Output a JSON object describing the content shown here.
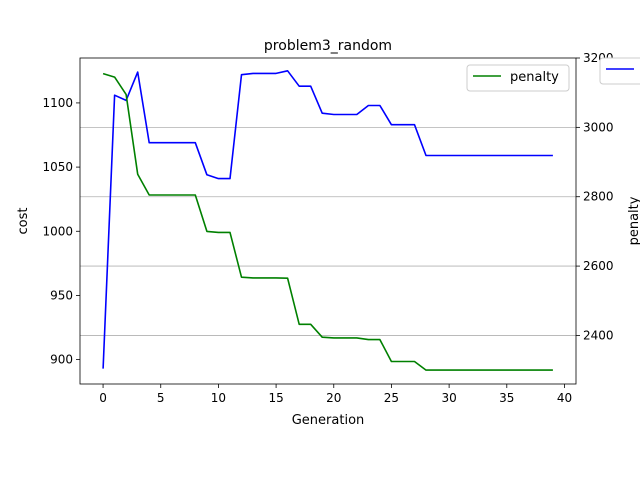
{
  "chart_data": {
    "type": "line",
    "title": "problem3_random",
    "xlabel": "Generation",
    "ylabel_left": "cost",
    "ylabel_right": "penalty",
    "xlim": [
      -2,
      41
    ],
    "ylim_left": [
      881,
      1135
    ],
    "ylim_right": [
      2260,
      3200
    ],
    "x_ticks": [
      0,
      5,
      10,
      15,
      20,
      25,
      30,
      35,
      40
    ],
    "y_ticks_left": [
      900,
      950,
      1000,
      1050,
      1100
    ],
    "y_ticks_right": [
      2400,
      2600,
      2800,
      3000,
      3200
    ],
    "grid": "horizontal, right axis",
    "legend": [
      {
        "label": "penalty",
        "color": "#008000",
        "placement": "top-right"
      }
    ],
    "series": [
      {
        "name": "cost",
        "axis": "left",
        "color": "#0000ff",
        "x": [
          0,
          1,
          2,
          3,
          4,
          5,
          6,
          7,
          8,
          9,
          10,
          11,
          12,
          13,
          14,
          15,
          16,
          17,
          18,
          19,
          20,
          21,
          22,
          23,
          24,
          25,
          26,
          27,
          28,
          29,
          30,
          31,
          32,
          33,
          34,
          35,
          36,
          37,
          38,
          39
        ],
        "values": [
          893,
          1106,
          1102,
          1124,
          1069,
          1069,
          1069,
          1069,
          1069,
          1044,
          1041,
          1041,
          1122,
          1123,
          1123,
          1123,
          1125,
          1113,
          1113,
          1092,
          1091,
          1091,
          1091,
          1098,
          1098,
          1083,
          1083,
          1083,
          1059,
          1059,
          1059,
          1059,
          1059,
          1059,
          1059,
          1059,
          1059,
          1059,
          1059,
          1059
        ]
      },
      {
        "name": "penalty",
        "axis": "right",
        "color": "#008000",
        "x": [
          0,
          1,
          2,
          3,
          4,
          5,
          6,
          7,
          8,
          9,
          10,
          11,
          12,
          13,
          14,
          15,
          16,
          17,
          18,
          19,
          20,
          21,
          22,
          23,
          24,
          25,
          26,
          27,
          28,
          29,
          30,
          31,
          32,
          33,
          34,
          35,
          36,
          37,
          38,
          39
        ],
        "values": [
          3155,
          3145,
          3095,
          2865,
          2805,
          2805,
          2805,
          2805,
          2805,
          2700,
          2697,
          2697,
          2568,
          2566,
          2566,
          2566,
          2565,
          2432,
          2432,
          2395,
          2393,
          2393,
          2393,
          2388,
          2388,
          2325,
          2325,
          2325,
          2300,
          2300,
          2300,
          2300,
          2300,
          2300,
          2300,
          2300,
          2300,
          2300,
          2300,
          2300
        ]
      }
    ]
  }
}
